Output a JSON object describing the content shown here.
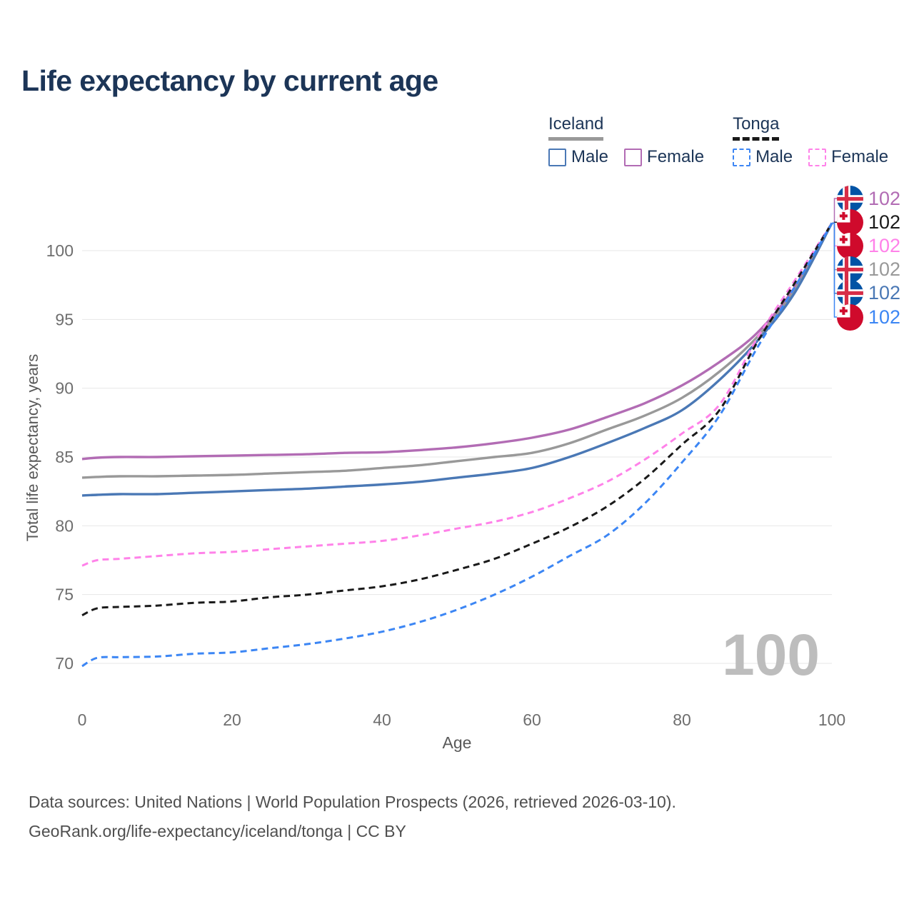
{
  "title": "Life expectancy by current age",
  "legend": {
    "groups": [
      {
        "country": "Iceland",
        "line_style": "solid",
        "underline_color": "#999999",
        "items": [
          {
            "label": "Male",
            "color": "#4a78b5",
            "dashed": false
          },
          {
            "label": "Female",
            "color": "#b26cb4",
            "dashed": false
          }
        ]
      },
      {
        "country": "Tonga",
        "line_style": "dashed",
        "underline_color": "#1a1a1a",
        "items": [
          {
            "label": "Male",
            "color": "#3c86f4",
            "dashed": true
          },
          {
            "label": "Female",
            "color": "#ff82e9",
            "dashed": true
          }
        ]
      }
    ]
  },
  "chart_data": {
    "type": "line",
    "title": "Life expectancy by current age",
    "xlabel": "Age",
    "ylabel": "Total life expectancy, years",
    "xlim": [
      0,
      100
    ],
    "ylim": [
      68.5,
      103.2
    ],
    "xticks": [
      0,
      20,
      40,
      60,
      80,
      100
    ],
    "yticks": [
      70,
      75,
      80,
      85,
      90,
      95,
      100
    ],
    "grid": "horizontal",
    "legend_position": "top-right",
    "age_indicator": "100",
    "x": [
      0,
      2,
      5,
      10,
      15,
      20,
      25,
      30,
      35,
      40,
      45,
      50,
      55,
      60,
      65,
      70,
      75,
      80,
      85,
      90,
      95,
      100
    ],
    "series": [
      {
        "name": "Iceland Female",
        "country": "Iceland",
        "sex": "Female",
        "color": "#b26cb4",
        "dashed": false,
        "values": [
          84.85,
          84.95,
          85.0,
          85.0,
          85.05,
          85.1,
          85.15,
          85.2,
          85.3,
          85.35,
          85.5,
          85.7,
          86.0,
          86.4,
          87.0,
          87.9,
          88.9,
          90.2,
          91.9,
          94.0,
          97.3,
          102
        ]
      },
      {
        "name": "Iceland Both sexes",
        "country": "Iceland",
        "sex": "Both sexes",
        "color": "#999999",
        "dashed": false,
        "values": [
          83.5,
          83.55,
          83.6,
          83.6,
          83.65,
          83.7,
          83.8,
          83.9,
          84.0,
          84.2,
          84.4,
          84.7,
          85.0,
          85.3,
          86.0,
          87.0,
          88.0,
          89.3,
          91.2,
          93.7,
          97.1,
          102
        ]
      },
      {
        "name": "Iceland Male",
        "country": "Iceland",
        "sex": "Male",
        "color": "#4a78b5",
        "dashed": false,
        "values": [
          82.2,
          82.25,
          82.3,
          82.3,
          82.4,
          82.5,
          82.6,
          82.7,
          82.85,
          83.0,
          83.2,
          83.5,
          83.8,
          84.2,
          85.0,
          86.0,
          87.1,
          88.4,
          90.6,
          93.4,
          96.9,
          102
        ]
      },
      {
        "name": "Tonga Female",
        "country": "Tonga",
        "sex": "Female",
        "color": "#ff82e9",
        "dashed": true,
        "values": [
          77.1,
          77.5,
          77.6,
          77.8,
          78.0,
          78.1,
          78.3,
          78.5,
          78.7,
          78.9,
          79.3,
          79.8,
          80.3,
          81.0,
          82.0,
          83.2,
          84.8,
          86.7,
          88.8,
          93.6,
          97.8,
          102
        ]
      },
      {
        "name": "Tonga Both sexes",
        "country": "Tonga",
        "sex": "Both sexes",
        "color": "#1a1a1a",
        "dashed": true,
        "values": [
          73.5,
          74.0,
          74.1,
          74.2,
          74.4,
          74.5,
          74.8,
          75.0,
          75.3,
          75.6,
          76.1,
          76.8,
          77.6,
          78.7,
          79.9,
          81.4,
          83.4,
          85.9,
          88.4,
          93.3,
          97.6,
          102
        ]
      },
      {
        "name": "Tonga Male",
        "country": "Tonga",
        "sex": "Male",
        "color": "#3c86f4",
        "dashed": true,
        "values": [
          69.8,
          70.4,
          70.45,
          70.5,
          70.7,
          70.8,
          71.1,
          71.4,
          71.8,
          72.3,
          73.0,
          73.9,
          75.0,
          76.3,
          77.8,
          79.3,
          81.6,
          84.6,
          88.0,
          92.9,
          97.3,
          102
        ]
      }
    ],
    "end_labels": [
      {
        "flag": "iceland",
        "value": "102",
        "color": "#b26cb4",
        "series": "Iceland Female"
      },
      {
        "flag": "tonga",
        "value": "102",
        "color": "#1a1a1a",
        "series": "Tonga Both sexes"
      },
      {
        "flag": "tonga",
        "value": "102",
        "color": "#ff82e9",
        "series": "Tonga Female"
      },
      {
        "flag": "iceland",
        "value": "102",
        "color": "#999999",
        "series": "Iceland Both sexes"
      },
      {
        "flag": "iceland",
        "value": "102",
        "color": "#4a78b5",
        "series": "Iceland Male"
      },
      {
        "flag": "tonga",
        "value": "102",
        "color": "#3c86f4",
        "series": "Tonga Male"
      }
    ]
  },
  "footer": {
    "line1": "Data sources: United Nations | World Population Prospects (2026, retrieved 2026-03-10).",
    "line2": "GeoRank.org/life-expectancy/iceland/tonga | CC BY"
  }
}
